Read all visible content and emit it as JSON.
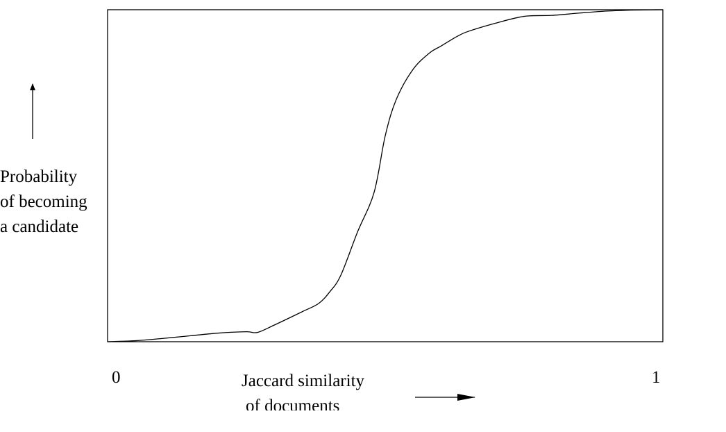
{
  "chart_data": {
    "type": "line",
    "title": "",
    "xlabel": [
      "Jaccard similarity",
      "of documents"
    ],
    "ylabel": [
      "Probability",
      "of becoming",
      "a candidate"
    ],
    "x_ticks": [
      "0",
      "1"
    ],
    "xlim": [
      0,
      1
    ],
    "ylim": [
      0,
      1
    ],
    "grid": false,
    "legend": "none",
    "series": [
      {
        "x": [
          0.0,
          0.05,
          0.1,
          0.15,
          0.2,
          0.25,
          0.27,
          0.3,
          0.35,
          0.38,
          0.4,
          0.42,
          0.45,
          0.48,
          0.5,
          0.52,
          0.55,
          0.58,
          0.6,
          0.63,
          0.65,
          0.7,
          0.75,
          0.8,
          0.85,
          0.9,
          0.95,
          1.0
        ],
        "y": [
          0.0,
          0.003,
          0.01,
          0.018,
          0.026,
          0.03,
          0.028,
          0.05,
          0.09,
          0.115,
          0.15,
          0.2,
          0.33,
          0.45,
          0.62,
          0.73,
          0.82,
          0.87,
          0.89,
          0.92,
          0.935,
          0.96,
          0.98,
          0.983,
          0.99,
          0.996,
          0.999,
          1.0
        ]
      }
    ]
  }
}
